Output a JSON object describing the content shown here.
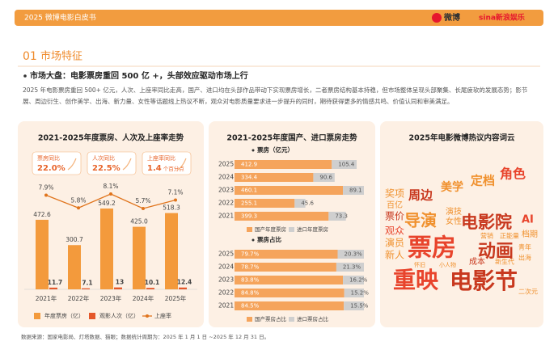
{
  "header": {
    "title": "2025 微博电影白皮书",
    "logos": [
      "微博",
      "sina新浪娱乐"
    ]
  },
  "section": {
    "number": "01",
    "title": "市场特征"
  },
  "bullet": "市场大盘：电影票房重回 500 亿 +，头部效应驱动市场上行",
  "paragraph": "2025 年电影票房重回 500+ 亿元，人次、上座率同比走高，国产、进口均在头部作品带动下实现票房增长，二者票房结构基本持稳，但市场整体呈现头部聚集、长尾疲软的发展态势；影节展、周边衍生、创作美学、出海、新力量、女性等话题线上热议不断，观众对电影质量要求进一步提升的同时，期待获得更多的情感共鸣、价值认同和审美满足。",
  "highlights": [
    {
      "label": "票房同比",
      "value": "22.0%"
    },
    {
      "label": "人次同比",
      "value": "22.5%"
    },
    {
      "label": "上座率同比",
      "value": "1.4",
      "unit": "个百分点"
    }
  ],
  "chart_data": [
    {
      "type": "bar",
      "title": "2021-2025年度票房、人次及上座率走势",
      "categories": [
        "2021年",
        "2022年",
        "2023年",
        "2024年",
        "2025年"
      ],
      "series": [
        {
          "name": "年度票房（亿）",
          "color": "#f39a3c",
          "values": [
            472.6,
            300.7,
            549.2,
            425.0,
            518.3
          ],
          "value_labels": [
            "472.6",
            "300.7",
            "549.2",
            "425.0",
            "518.3"
          ]
        },
        {
          "name": "观影人次（亿）",
          "color": "#e4572a",
          "values": [
            11.7,
            7.1,
            13.0,
            10.1,
            12.4
          ]
        },
        {
          "name": "上座率",
          "color": "#e0741c",
          "type": "line",
          "axis": "y2",
          "values": [
            7.9,
            5.8,
            8.1,
            5.7,
            7.1
          ],
          "value_labels": [
            "7.9%",
            "5.8%",
            "8.1%",
            "5.7%",
            "7.1%"
          ]
        }
      ]
    },
    {
      "type": "bar",
      "orientation": "horizontal",
      "stacked": true,
      "title": "2021-2025年度国产、进口票房走势",
      "subtitle": "票房（亿元）",
      "categories": [
        "2025",
        "2024",
        "2023",
        "2022",
        "2021"
      ],
      "series": [
        {
          "name": "国产年度票房",
          "color": "#f5a45c",
          "values": [
            412.9,
            334.4,
            460.1,
            255.1,
            399.3
          ]
        },
        {
          "name": "进口年度票房",
          "color": "#cfcfcf",
          "values": [
            105.4,
            90.6,
            89.1,
            45.6,
            73.3
          ]
        }
      ]
    },
    {
      "type": "bar",
      "orientation": "horizontal",
      "stacked": true,
      "subtitle": "票房占比",
      "categories": [
        "2025",
        "2024",
        "2023",
        "2022",
        "2021"
      ],
      "series": [
        {
          "name": "国产票房占比",
          "color": "#f5a45c",
          "values": [
            79.7,
            78.7,
            83.8,
            84.8,
            84.5
          ],
          "value_labels": [
            "79.7%",
            "78.7%",
            "83.8%",
            "84.8%",
            "84.5%"
          ]
        },
        {
          "name": "进口票房占比",
          "color": "#cfcfcf",
          "values": [
            20.3,
            21.3,
            16.2,
            15.2,
            15.5
          ],
          "value_labels": [
            "20.3%",
            "21.3%",
            "16.2%",
            "15.2%",
            "15.5%"
          ]
        }
      ]
    }
  ],
  "word_cloud": {
    "title": "2025年电影微博热议内容词云",
    "words": [
      "角色",
      "定档",
      "美学",
      "奖项",
      "周边",
      "百亿",
      "票价",
      "演技",
      "女性",
      "导演",
      "电影院",
      "AI",
      "观众",
      "营销",
      "正能量",
      "档期",
      "演员",
      "票房",
      "动画",
      "青年",
      "新人",
      "出海",
      "成本",
      "新生代",
      "怀旧",
      "小人物",
      "重映",
      "电影节",
      "二次元"
    ]
  },
  "footer": "数据来源：国家电影局、灯塔数据、猫眼；数据统计周期为：2025 年 1 月 1 日 ~2025 年 12 月 31 日。"
}
